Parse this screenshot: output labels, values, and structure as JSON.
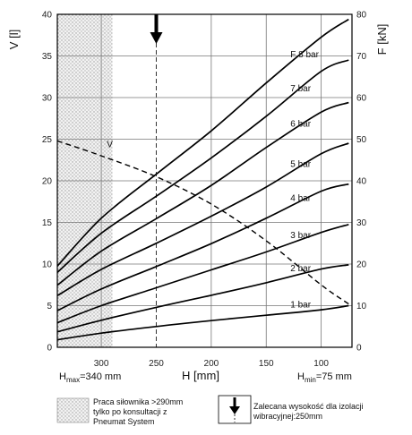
{
  "chart_data": {
    "type": "line",
    "x_axis": {
      "label": "H [mm]",
      "reversed": true,
      "range": [
        72,
        340
      ],
      "ticks": [
        300,
        250,
        200,
        150,
        100
      ],
      "min_note": {
        "prefix": "H",
        "sub": "min",
        "text": "=75 mm",
        "value": 75
      },
      "max_note": {
        "prefix": "H",
        "sub": "max",
        "text": "=340 mm",
        "value": 340
      }
    },
    "y_left": {
      "label": "V [l]",
      "range": [
        0,
        40
      ],
      "ticks": [
        0,
        5,
        10,
        15,
        20,
        25,
        30,
        35,
        40
      ]
    },
    "y_right": {
      "label": "F [kN]",
      "range": [
        0,
        80
      ],
      "ticks": [
        0,
        10,
        20,
        30,
        40,
        50,
        60,
        70,
        80
      ]
    },
    "grid_x": [
      300,
      250,
      200,
      150,
      100
    ],
    "grid_y_left": [
      5,
      10,
      15,
      20,
      25,
      30,
      35
    ],
    "hatched_region": {
      "from": 340,
      "to": 290
    },
    "recommended_height": 250,
    "series": [
      {
        "name": "1 bar",
        "axis": "right",
        "x": [
          340,
          300,
          250,
          200,
          150,
          100,
          75
        ],
        "y": [
          1.8,
          3.4,
          5.0,
          6.4,
          7.7,
          9.0,
          10.0
        ]
      },
      {
        "name": "2 bar",
        "axis": "right",
        "x": [
          340,
          300,
          250,
          200,
          150,
          100,
          75
        ],
        "y": [
          3.7,
          6.5,
          9.6,
          12.5,
          15.5,
          18.8,
          19.8
        ]
      },
      {
        "name": "3 bar",
        "axis": "right",
        "x": [
          340,
          300,
          250,
          200,
          150,
          100,
          75
        ],
        "y": [
          5.9,
          10.0,
          14.3,
          18.6,
          22.9,
          27.6,
          29.5
        ]
      },
      {
        "name": "4 bar",
        "axis": "right",
        "x": [
          340,
          300,
          250,
          200,
          150,
          100,
          75
        ],
        "y": [
          8.8,
          14.0,
          19.4,
          24.9,
          31.0,
          37.5,
          39.2
        ]
      },
      {
        "name": "5 bar",
        "axis": "right",
        "x": [
          340,
          300,
          250,
          200,
          150,
          100,
          75
        ],
        "y": [
          12.4,
          18.7,
          25.0,
          31.5,
          38.5,
          46.5,
          49.0
        ]
      },
      {
        "name": "6 bar",
        "axis": "right",
        "x": [
          340,
          300,
          250,
          200,
          150,
          100,
          75
        ],
        "y": [
          14.9,
          23.1,
          30.9,
          38.9,
          48.0,
          56.5,
          58.8
        ]
      },
      {
        "name": "7 bar",
        "axis": "right",
        "x": [
          340,
          300,
          250,
          200,
          150,
          100,
          75
        ],
        "y": [
          18.0,
          27.4,
          36.3,
          45.5,
          55.5,
          66.3,
          69.0
        ]
      },
      {
        "name": "F 8 bar",
        "axis": "right",
        "x": [
          340,
          300,
          250,
          200,
          150,
          100,
          75
        ],
        "y": [
          19.5,
          31.0,
          41.6,
          52.0,
          63.5,
          74.5,
          78.8
        ]
      },
      {
        "name": "V",
        "axis": "left",
        "style": "dashed",
        "x": [
          340,
          300,
          250,
          200,
          150,
          100,
          75
        ],
        "y": [
          24.8,
          23.0,
          20.5,
          17.2,
          12.8,
          7.5,
          5.2
        ]
      }
    ]
  },
  "legend": {
    "hatch_text": [
      "Praca siłownika >290mm",
      "tylko po konsultacji z",
      "Pneumat System"
    ],
    "arrow_text": [
      "Zalecana wysokość dla izolacji",
      "wibracyjnej:250mm"
    ]
  }
}
